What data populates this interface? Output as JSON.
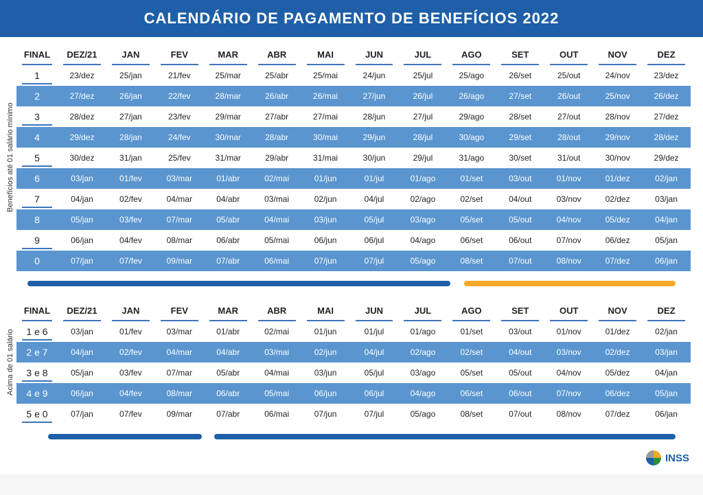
{
  "title": "CALENDÁRIO DE PAGAMENTO DE BENEFÍCIOS 2022",
  "logo_text": "INSS",
  "section1_label": "Benefícios até 01 salário mínimo",
  "section2_label": "Acima de 01 salário",
  "columns": [
    "FINAL",
    "DEZ/21",
    "JAN",
    "FEV",
    "MAR",
    "ABR",
    "MAI",
    "JUN",
    "JUL",
    "AGO",
    "SET",
    "OUT",
    "NOV",
    "DEZ"
  ],
  "section1_rows": [
    [
      "1",
      "23/dez",
      "25/jan",
      "21/fev",
      "25/mar",
      "25/abr",
      "25/mai",
      "24/jun",
      "25/jul",
      "25/ago",
      "26/set",
      "25/out",
      "24/nov",
      "23/dez"
    ],
    [
      "2",
      "27/dez",
      "26/jan",
      "22/fev",
      "28/mar",
      "26/abr",
      "26/mai",
      "27/jun",
      "26/jul",
      "26/ago",
      "27/set",
      "26/out",
      "25/nov",
      "26/dez"
    ],
    [
      "3",
      "28/dez",
      "27/jan",
      "23/fev",
      "29/mar",
      "27/abr",
      "27/mai",
      "28/jun",
      "27/jul",
      "29/ago",
      "28/set",
      "27/out",
      "28/nov",
      "27/dez"
    ],
    [
      "4",
      "29/dez",
      "28/jan",
      "24/fev",
      "30/mar",
      "28/abr",
      "30/mai",
      "29/jun",
      "28/jul",
      "30/ago",
      "29/set",
      "28/out",
      "29/nov",
      "28/dez"
    ],
    [
      "5",
      "30/dez",
      "31/jan",
      "25/fev",
      "31/mar",
      "29/abr",
      "31/mai",
      "30/jun",
      "29/jul",
      "31/ago",
      "30/set",
      "31/out",
      "30/nov",
      "29/dez"
    ],
    [
      "6",
      "03/jan",
      "01/fev",
      "03/mar",
      "01/abr",
      "02/mai",
      "01/jun",
      "01/jul",
      "01/ago",
      "01/set",
      "03/out",
      "01/nov",
      "01/dez",
      "02/jan"
    ],
    [
      "7",
      "04/jan",
      "02/fev",
      "04/mar",
      "04/abr",
      "03/mai",
      "02/jun",
      "04/jul",
      "02/ago",
      "02/set",
      "04/out",
      "03/nov",
      "02/dez",
      "03/jan"
    ],
    [
      "8",
      "05/jan",
      "03/fev",
      "07/mar",
      "05/abr",
      "04/mai",
      "03/jun",
      "05/jul",
      "03/ago",
      "05/set",
      "05/out",
      "04/nov",
      "05/dez",
      "04/jan"
    ],
    [
      "9",
      "06/jan",
      "04/fev",
      "08/mar",
      "06/abr",
      "05/mai",
      "06/jun",
      "06/jul",
      "04/ago",
      "06/set",
      "06/out",
      "07/nov",
      "06/dez",
      "05/jan"
    ],
    [
      "0",
      "07/jan",
      "07/fev",
      "09/mar",
      "07/abr",
      "06/mai",
      "07/jun",
      "07/jul",
      "05/ago",
      "08/set",
      "07/out",
      "08/nov",
      "07/dez",
      "06/jan"
    ]
  ],
  "section2_rows": [
    [
      "1 e 6",
      "03/jan",
      "01/fev",
      "03/mar",
      "01/abr",
      "02/mai",
      "01/jun",
      "01/jul",
      "01/ago",
      "01/set",
      "03/out",
      "01/nov",
      "01/dez",
      "02/jan"
    ],
    [
      "2 e 7",
      "04/jan",
      "02/fev",
      "04/mar",
      "04/abr",
      "03/mai",
      "02/jun",
      "04/jul",
      "02/ago",
      "02/set",
      "04/out",
      "03/nov",
      "02/dez",
      "03/jan"
    ],
    [
      "3 e 8",
      "05/jan",
      "03/fev",
      "07/mar",
      "05/abr",
      "04/mai",
      "03/jun",
      "05/jul",
      "03/ago",
      "05/set",
      "05/out",
      "04/nov",
      "05/dez",
      "04/jan"
    ],
    [
      "4 e 9",
      "06/jan",
      "04/fev",
      "08/mar",
      "06/abr",
      "05/mai",
      "06/jun",
      "06/jul",
      "04/ago",
      "06/set",
      "06/out",
      "07/nov",
      "06/dez",
      "05/jan"
    ],
    [
      "5 e 0",
      "07/jan",
      "07/fev",
      "09/mar",
      "07/abr",
      "06/mai",
      "07/jun",
      "07/jul",
      "05/ago",
      "08/set",
      "07/out",
      "08/nov",
      "07/dez",
      "06/jan"
    ]
  ],
  "colors": {
    "header_bg": "#1e5fa8",
    "row_even_bg": "#5a95cf",
    "sep_yellow": "#f6a828",
    "underline": "#3b74b8"
  }
}
